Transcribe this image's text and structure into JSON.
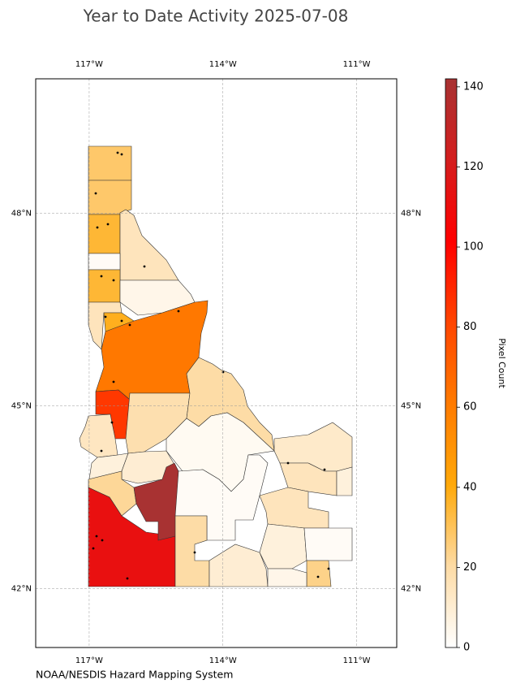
{
  "chart_data": {
    "type": "choropleth",
    "title": "Year to Date Activity 2025-07-08",
    "source": "NOAA/NESDIS Hazard Mapping System",
    "xlim": [
      -118.2,
      -110.1
    ],
    "ylim": [
      41,
      50
    ],
    "xticks": [
      {
        "value": -117,
        "label": "117°W"
      },
      {
        "value": -114,
        "label": "114°W"
      },
      {
        "value": -111,
        "label": "111°W"
      }
    ],
    "yticks": [
      {
        "value": 42,
        "label": "42°N"
      },
      {
        "value": 45,
        "label": "45°N"
      },
      {
        "value": 48,
        "label": "48°N"
      }
    ],
    "grid": true,
    "values": [
      28,
      28,
      35,
      15,
      2,
      35,
      5,
      15,
      38,
      62,
      85,
      14,
      18,
      20,
      3,
      8,
      10,
      22,
      112,
      142,
      2,
      20,
      10,
      12,
      15,
      15,
      8,
      2,
      24,
      5,
      8
    ],
    "colorbar": {
      "label": "Pixel Count",
      "lim": [
        0,
        142
      ],
      "ticks": [
        0,
        20,
        40,
        60,
        80,
        100,
        120,
        140
      ],
      "colors": [
        "#ffffff",
        "#fddba5",
        "#ffa90a",
        "#ff7b00",
        "#ff4500",
        "#ff0000",
        "#d41e1e",
        "#a83232"
      ]
    }
  }
}
